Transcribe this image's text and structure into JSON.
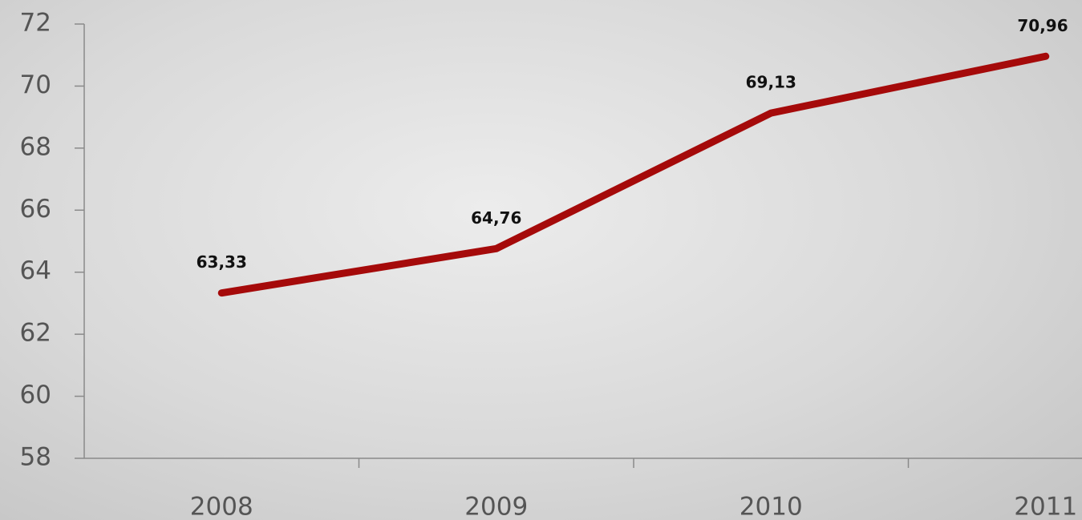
{
  "chart_data": {
    "type": "line",
    "categories": [
      "2008",
      "2009",
      "2010",
      "2011"
    ],
    "series": [
      {
        "values": [
          63.33,
          64.76,
          69.13,
          70.96
        ],
        "value_labels": [
          "63,33",
          "64,76",
          "69,13",
          "70,96"
        ],
        "color": "#a50a0a"
      }
    ],
    "ylim": [
      58,
      72
    ],
    "yticks": [
      58,
      60,
      62,
      64,
      66,
      68,
      70,
      72
    ]
  }
}
